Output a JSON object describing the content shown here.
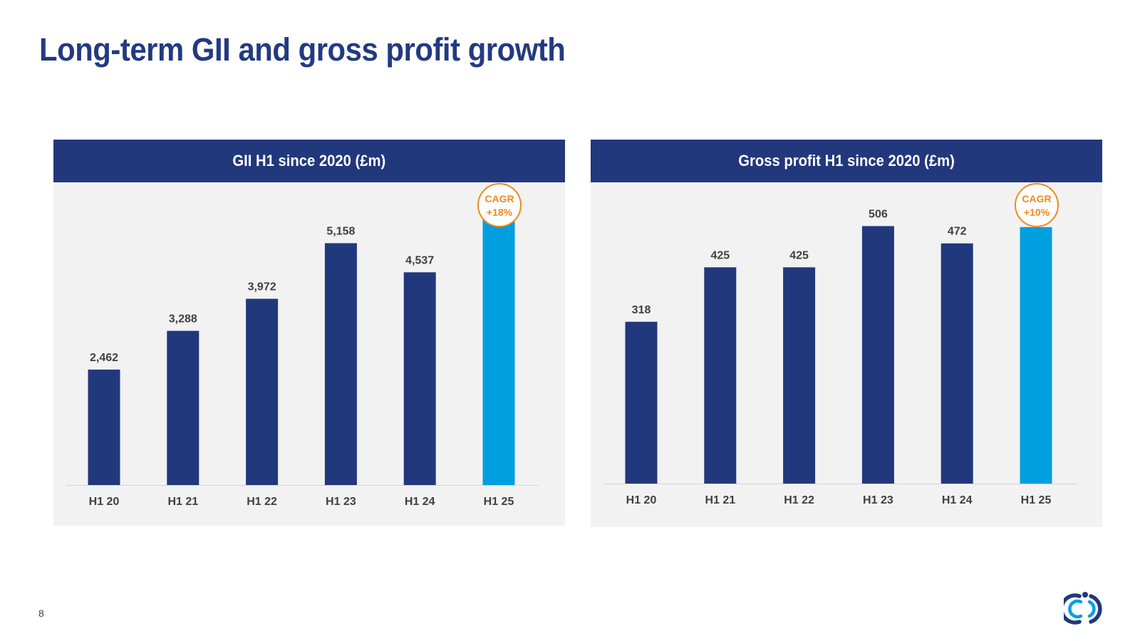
{
  "slide": {
    "title": "Long-term GII and gross profit growth",
    "page_number": "8"
  },
  "colors": {
    "navy": "#22387d",
    "highlight": "#009fdf",
    "cagr_orange": "#f08a1c",
    "panel_bg": "#f2f2f2"
  },
  "logo": {
    "icon": "brand-logo-icon"
  },
  "chart_data": [
    {
      "type": "bar",
      "title": "GII H1 since 2020 (£m)",
      "categories": [
        "H1 20",
        "H1 21",
        "H1 22",
        "H1 23",
        "H1 24",
        "H1 25"
      ],
      "values": [
        2462,
        3288,
        3972,
        5158,
        4537,
        5665
      ],
      "value_labels": [
        "2,462",
        "3,288",
        "3,972",
        "5,158",
        "4,537",
        "5,665"
      ],
      "highlight_index": 5,
      "annotation": {
        "line1": "CAGR",
        "line2": "+18%"
      },
      "ylim": [
        0,
        6000
      ],
      "grid": false,
      "xlabel": "",
      "ylabel": ""
    },
    {
      "type": "bar",
      "title": "Gross profit H1 since 2020 (£m)",
      "categories": [
        "H1 20",
        "H1 21",
        "H1 22",
        "H1 23",
        "H1 24",
        "H1 25"
      ],
      "values": [
        318,
        425,
        425,
        506,
        472,
        504
      ],
      "value_labels": [
        "318",
        "425",
        "425",
        "506",
        "472",
        "504"
      ],
      "highlight_index": 5,
      "annotation": {
        "line1": "CAGR",
        "line2": "+10%"
      },
      "ylim": [
        0,
        550
      ],
      "grid": false,
      "xlabel": "",
      "ylabel": ""
    }
  ]
}
